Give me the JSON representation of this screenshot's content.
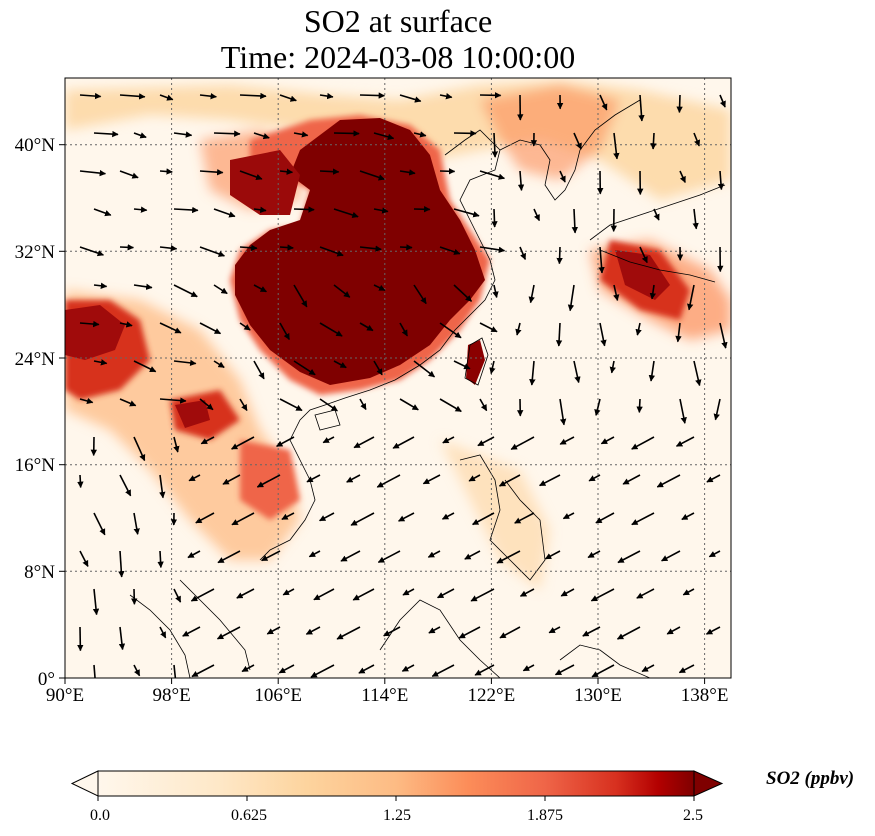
{
  "map": {
    "title_line1": "SO2 at surface",
    "title_line2": "Time: 2024-03-08 10:00:00",
    "lon_ticks": [
      "90°E",
      "98°E",
      "106°E",
      "114°E",
      "122°E",
      "130°E",
      "138°E"
    ],
    "lat_ticks": [
      "0°",
      "8°N",
      "16°N",
      "24°N",
      "32°N",
      "40°N"
    ],
    "extent": {
      "lon_min": 90,
      "lon_max": 140,
      "lat_min": 0,
      "lat_max": 45
    },
    "gridlines": true,
    "colormap": "OrRd",
    "overlay": "wind vectors",
    "colors": {
      "low": "#fff7ec",
      "mid": "#fc8d59",
      "high": "#7f0000",
      "coast": "#000000"
    }
  },
  "colorbar": {
    "label": "SO2 (ppbv)",
    "ticks": [
      "0.0",
      "0.625",
      "1.25",
      "1.875",
      "2.5"
    ],
    "extend": "both"
  }
}
